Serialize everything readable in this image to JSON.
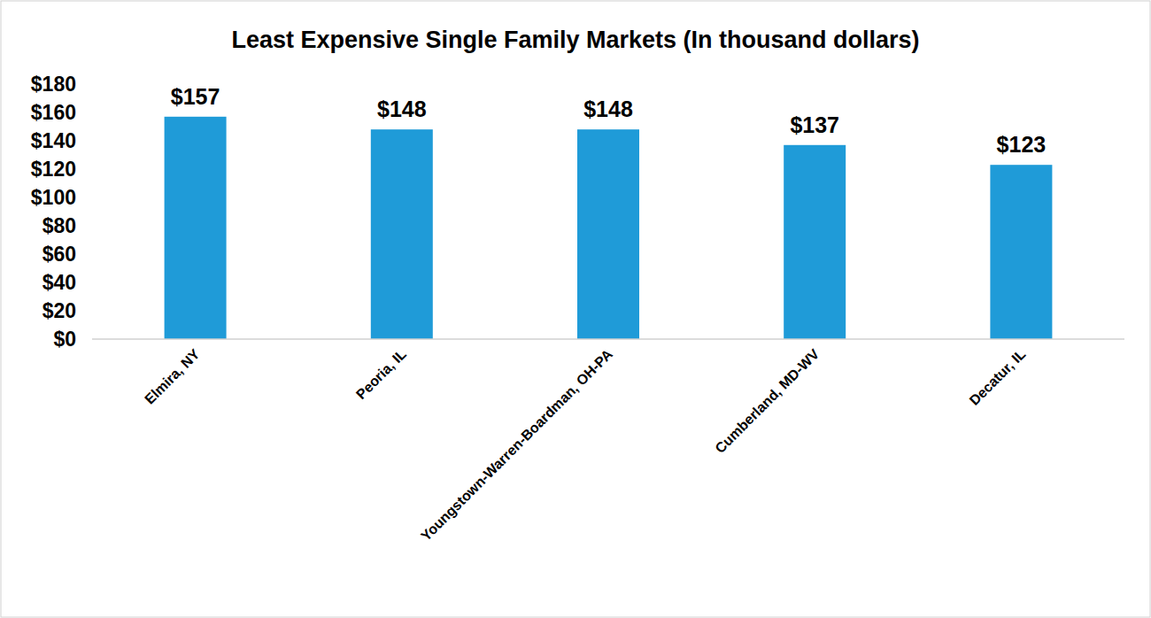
{
  "chart_data": {
    "type": "bar",
    "title": "Least Expensive Single Family Markets (In thousand dollars)",
    "categories": [
      "Elmira, NY",
      "Peoria, IL",
      "Youngstown-Warren-Boardman, OH-PA",
      "Cumberland, MD-WV",
      "Decatur, IL"
    ],
    "values": [
      157,
      148,
      148,
      137,
      123
    ],
    "value_labels": [
      "$157",
      "$148",
      "$148",
      "$137",
      "$123"
    ],
    "color": "#1f9bd8",
    "ylim": [
      0,
      180
    ],
    "yticks": [
      {
        "value": 0,
        "label": "$0"
      },
      {
        "value": 20,
        "label": "$20"
      },
      {
        "value": 40,
        "label": "$40"
      },
      {
        "value": 60,
        "label": "$60"
      },
      {
        "value": 80,
        "label": "$80"
      },
      {
        "value": 100,
        "label": "$100"
      },
      {
        "value": 120,
        "label": "$120"
      },
      {
        "value": 140,
        "label": "$140"
      },
      {
        "value": 160,
        "label": "$160"
      },
      {
        "value": 180,
        "label": "$180"
      }
    ],
    "grid": false,
    "data_labels": true
  }
}
